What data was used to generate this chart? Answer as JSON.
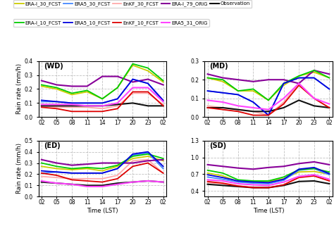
{
  "x_ticks": [
    "02",
    "05",
    "08",
    "11",
    "14",
    "17",
    "20",
    "23",
    "02"
  ],
  "x_vals": [
    0,
    1,
    2,
    3,
    4,
    5,
    6,
    7,
    8
  ],
  "legend": {
    "ERA-I_30_FCST": {
      "color": "#cccc00",
      "lw": 1.3,
      "ls": "-"
    },
    "ERA5_30_FCST": {
      "color": "#4488ff",
      "lw": 1.3,
      "ls": "-"
    },
    "EnKF_30_FCST": {
      "color": "#ffaaaa",
      "lw": 1.3,
      "ls": "-"
    },
    "ERA-I_79_ORIG": {
      "color": "#880099",
      "lw": 1.5,
      "ls": "-"
    },
    "Observation": {
      "color": "#111111",
      "lw": 1.5,
      "ls": "-"
    },
    "ERA-I_10_FCST": {
      "color": "#00cc00",
      "lw": 1.3,
      "ls": "-"
    },
    "ERA5_10_FCST": {
      "color": "#0000dd",
      "lw": 1.3,
      "ls": "-"
    },
    "EnKF_10_FCST": {
      "color": "#dd0000",
      "lw": 1.3,
      "ls": "-"
    },
    "ERA5_31_ORIG": {
      "color": "#ff44ff",
      "lw": 1.5,
      "ls": "-"
    }
  },
  "panels": {
    "WD": {
      "label": "(WD)",
      "ylim": [
        0.0,
        0.4
      ],
      "yticks": [
        0.0,
        0.1,
        0.2,
        0.3,
        0.4
      ],
      "ylabel": "Rain rate (mm/h)",
      "data": {
        "ERA-I_30_FCST": [
          0.22,
          0.2,
          0.16,
          0.18,
          0.13,
          0.21,
          0.37,
          0.33,
          0.25
        ],
        "ERA5_30_FCST": [
          0.11,
          0.11,
          0.1,
          0.1,
          0.1,
          0.13,
          0.27,
          0.24,
          0.11
        ],
        "EnKF_30_FCST": [
          0.08,
          0.07,
          0.07,
          0.07,
          0.06,
          0.08,
          0.17,
          0.17,
          0.09
        ],
        "ERA-I_79_ORIG": [
          0.26,
          0.23,
          0.22,
          0.22,
          0.29,
          0.29,
          0.25,
          0.27,
          0.23
        ],
        "Observation": [
          0.08,
          0.08,
          0.08,
          0.08,
          0.08,
          0.09,
          0.1,
          0.08,
          0.08
        ],
        "ERA-I_10_FCST": [
          0.23,
          0.21,
          0.17,
          0.19,
          0.13,
          0.21,
          0.38,
          0.35,
          0.26
        ],
        "ERA5_10_FCST": [
          0.12,
          0.11,
          0.1,
          0.1,
          0.1,
          0.13,
          0.27,
          0.24,
          0.12
        ],
        "EnKF_10_FCST": [
          0.07,
          0.06,
          0.04,
          0.04,
          0.04,
          0.06,
          0.18,
          0.18,
          0.08
        ],
        "ERA5_31_ORIG": [
          0.09,
          0.09,
          0.09,
          0.08,
          0.08,
          0.1,
          0.21,
          0.21,
          0.11
        ]
      }
    },
    "MD": {
      "label": "(MD)",
      "ylim": [
        0.0,
        0.3
      ],
      "yticks": [
        0.0,
        0.1,
        0.2,
        0.3
      ],
      "ylabel": "",
      "data": {
        "ERA-I_30_FCST": [
          0.21,
          0.19,
          0.14,
          0.14,
          0.09,
          0.17,
          0.22,
          0.24,
          0.21
        ],
        "ERA5_30_FCST": [
          0.14,
          0.13,
          0.12,
          0.08,
          0.01,
          0.18,
          0.21,
          0.21,
          0.15
        ],
        "EnKF_30_FCST": [
          0.06,
          0.05,
          0.04,
          0.03,
          0.01,
          0.08,
          0.18,
          0.1,
          0.05
        ],
        "ERA-I_79_ORIG": [
          0.23,
          0.21,
          0.2,
          0.19,
          0.2,
          0.2,
          0.18,
          0.25,
          0.23
        ],
        "Observation": [
          0.05,
          0.05,
          0.04,
          0.03,
          0.03,
          0.05,
          0.09,
          0.06,
          0.05
        ],
        "ERA-I_10_FCST": [
          0.21,
          0.2,
          0.14,
          0.15,
          0.09,
          0.18,
          0.22,
          0.25,
          0.21
        ],
        "ERA5_10_FCST": [
          0.14,
          0.13,
          0.12,
          0.08,
          0.01,
          0.18,
          0.21,
          0.21,
          0.15
        ],
        "EnKF_10_FCST": [
          0.05,
          0.04,
          0.03,
          0.01,
          0.01,
          0.07,
          0.17,
          0.1,
          0.05
        ],
        "ERA5_31_ORIG": [
          0.09,
          0.08,
          0.06,
          0.05,
          0.04,
          0.1,
          0.18,
          0.1,
          0.07
        ]
      }
    },
    "ED": {
      "label": "(ED)",
      "ylim": [
        0.0,
        0.5
      ],
      "yticks": [
        0.0,
        0.1,
        0.2,
        0.3,
        0.4,
        0.5
      ],
      "ylabel": "Rain rate (mm/h)",
      "data": {
        "ERA-I_30_FCST": [
          0.27,
          0.25,
          0.24,
          0.25,
          0.23,
          0.27,
          0.34,
          0.36,
          0.32
        ],
        "ERA5_30_FCST": [
          0.21,
          0.22,
          0.21,
          0.21,
          0.21,
          0.25,
          0.37,
          0.39,
          0.25
        ],
        "EnKF_30_FCST": [
          0.18,
          0.17,
          0.16,
          0.16,
          0.16,
          0.19,
          0.32,
          0.33,
          0.21
        ],
        "ERA-I_79_ORIG": [
          0.33,
          0.3,
          0.28,
          0.29,
          0.3,
          0.3,
          0.3,
          0.32,
          0.33
        ],
        "Observation": [
          0.13,
          0.12,
          0.11,
          0.1,
          0.1,
          0.12,
          0.13,
          0.14,
          0.13
        ],
        "ERA-I_10_FCST": [
          0.3,
          0.27,
          0.25,
          0.26,
          0.25,
          0.28,
          0.36,
          0.38,
          0.34
        ],
        "ERA5_10_FCST": [
          0.23,
          0.22,
          0.21,
          0.21,
          0.21,
          0.25,
          0.38,
          0.4,
          0.27
        ],
        "EnKF_10_FCST": [
          0.21,
          0.19,
          0.15,
          0.14,
          0.13,
          0.16,
          0.27,
          0.3,
          0.21
        ],
        "ERA5_31_ORIG": [
          0.14,
          0.12,
          0.11,
          0.09,
          0.09,
          0.11,
          0.13,
          0.14,
          0.13
        ]
      }
    },
    "SD": {
      "label": "(SD)",
      "ylim": [
        0.3,
        1.3
      ],
      "yticks": [
        0.4,
        0.7,
        1.0,
        1.3
      ],
      "ylabel": "",
      "data": {
        "ERA-I_30_FCST": [
          0.72,
          0.67,
          0.57,
          0.57,
          0.57,
          0.62,
          0.74,
          0.75,
          0.7
        ],
        "ERA5_30_FCST": [
          0.65,
          0.61,
          0.56,
          0.54,
          0.53,
          0.59,
          0.77,
          0.8,
          0.69
        ],
        "EnKF_30_FCST": [
          0.55,
          0.53,
          0.49,
          0.47,
          0.46,
          0.51,
          0.66,
          0.67,
          0.59
        ],
        "ERA-I_79_ORIG": [
          0.87,
          0.84,
          0.81,
          0.79,
          0.82,
          0.84,
          0.89,
          0.92,
          0.87
        ],
        "Observation": [
          0.52,
          0.5,
          0.48,
          0.46,
          0.46,
          0.5,
          0.57,
          0.58,
          0.53
        ],
        "ERA-I_10_FCST": [
          0.77,
          0.72,
          0.6,
          0.58,
          0.58,
          0.65,
          0.78,
          0.8,
          0.74
        ],
        "ERA5_10_FCST": [
          0.69,
          0.64,
          0.58,
          0.56,
          0.55,
          0.61,
          0.79,
          0.82,
          0.71
        ],
        "EnKF_10_FCST": [
          0.57,
          0.54,
          0.49,
          0.46,
          0.46,
          0.51,
          0.64,
          0.67,
          0.58
        ],
        "ERA5_31_ORIG": [
          0.6,
          0.58,
          0.53,
          0.51,
          0.5,
          0.56,
          0.66,
          0.69,
          0.61
        ]
      }
    }
  },
  "legend_order": [
    "ERA-I_30_FCST",
    "ERA5_30_FCST",
    "EnKF_30_FCST",
    "ERA-I_79_ORIG",
    "Observation",
    "ERA-I_10_FCST",
    "ERA5_10_FCST",
    "EnKF_10_FCST",
    "ERA5_31_ORIG"
  ],
  "grid_color": "#bbbbbb",
  "bg_color": "#ffffff"
}
